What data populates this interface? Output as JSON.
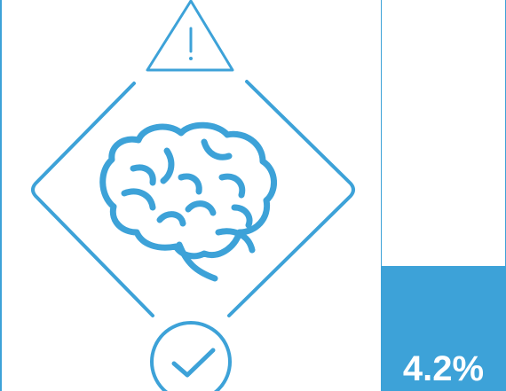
{
  "colors": {
    "accent": "#3da2d8",
    "background": "#ffffff"
  },
  "icons": {
    "warning": "warning-triangle-icon",
    "brain": "brain-icon",
    "check": "check-circle-icon",
    "frame": "diamond-frame"
  },
  "stat": {
    "value_label": "4.2%",
    "fill_fraction": 0.32
  }
}
